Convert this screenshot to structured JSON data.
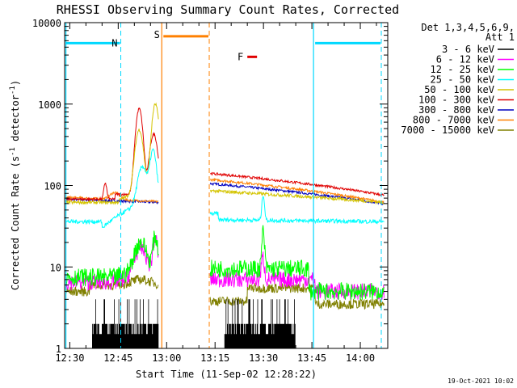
{
  "chart_data": {
    "type": "line",
    "title": "RHESSI Observing Summary Count Rates, Corrected",
    "xlabel": "Start Time (11-Sep-02 12:28:22)",
    "ylabel": "Corrected Count Rate (s⁻¹ detector⁻¹)",
    "ylabel_main": "Corrected Count Rate (s",
    "ylabel_sup1": "-1",
    "ylabel_mid": " detector",
    "ylabel_sup2": "-1",
    "ylabel_end": ")",
    "x_ticks": [
      "12:30",
      "12:45",
      "13:00",
      "13:15",
      "13:30",
      "13:45",
      "14:00"
    ],
    "x_tick_minutes": [
      30,
      45,
      60,
      75,
      90,
      105,
      120
    ],
    "xlim_minutes": [
      28.4,
      128.5
    ],
    "y_scale": "log",
    "ylim": [
      1,
      10000
    ],
    "y_ticks": [
      "1",
      "10",
      "100",
      "1000",
      "10000"
    ],
    "legend_header": [
      "Det 1,3,4,5,6,9,",
      "Att 1"
    ],
    "legend_position": "right",
    "series": [
      {
        "name": "3 - 6 keV",
        "color": "#000000"
      },
      {
        "name": "6 - 12 keV",
        "color": "#ff00ff"
      },
      {
        "name": "12 - 25 keV",
        "color": "#00ff00"
      },
      {
        "name": "25 - 50 keV",
        "color": "#00ffff"
      },
      {
        "name": "50 - 100 keV",
        "color": "#d4c400"
      },
      {
        "name": "100 - 300 keV",
        "color": "#e00000"
      },
      {
        "name": "300 - 800 keV",
        "color": "#0000c0"
      },
      {
        "name": "800 - 7000 keV",
        "color": "#ff8000"
      },
      {
        "name": "7000 - 15000 keV",
        "color": "#808000"
      }
    ],
    "annotations": [
      {
        "label": "N",
        "start": 28.4,
        "end": 45.8,
        "color": "#00d8ff"
      },
      {
        "label": "S",
        "start": 58.5,
        "end": 73.2,
        "color": "#ff8000"
      },
      {
        "label": "F",
        "start": 85,
        "end": 88,
        "color": "#e00000"
      }
    ],
    "night_bars": [
      {
        "start": 28.4,
        "end": 45.8
      },
      {
        "start": 105.5,
        "end": 126.5
      }
    ],
    "vlines_solid": [
      {
        "at": 28.8,
        "color": "#00d8ff"
      },
      {
        "at": 58.5,
        "color": "#ff8000"
      },
      {
        "at": 105.5,
        "color": "#00d8ff"
      }
    ],
    "vlines_dashed": [
      {
        "at": 45.8,
        "color": "#00d8ff"
      },
      {
        "at": 73.2,
        "color": "#ff8000"
      },
      {
        "at": 126.5,
        "color": "#00d8ff"
      }
    ]
  },
  "footer_date": "19-Oct-2021 10:02"
}
